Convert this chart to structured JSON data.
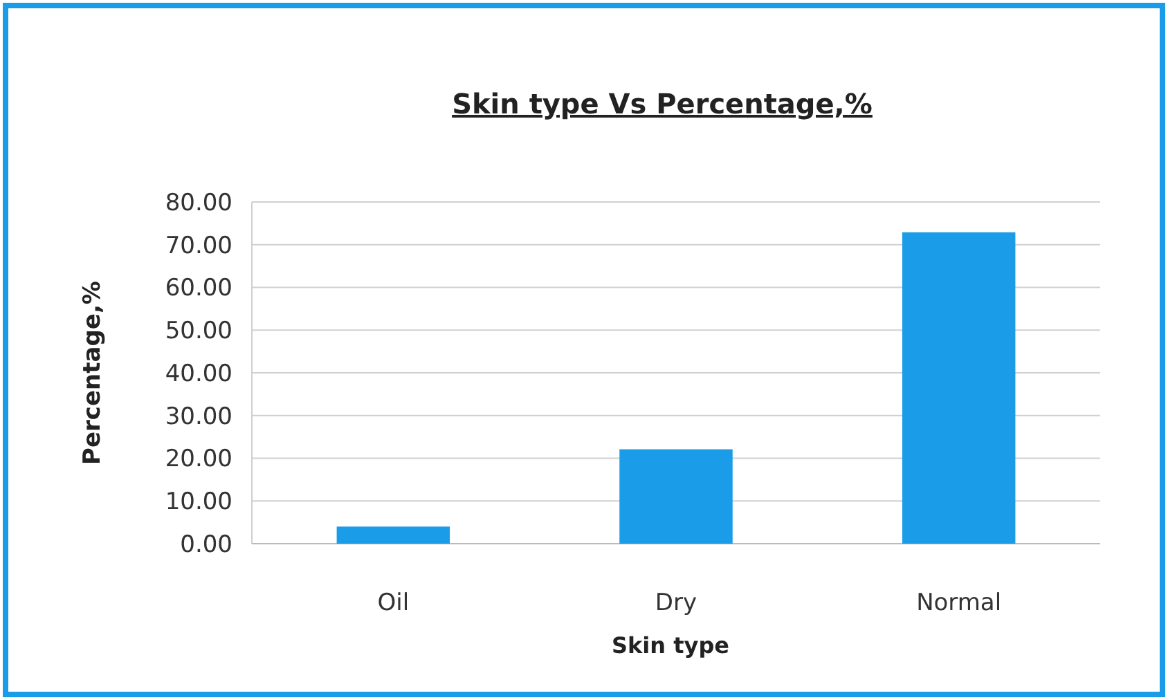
{
  "chart_data": {
    "type": "bar",
    "title": "Skin type Vs Percentage,%",
    "xlabel": "Skin type",
    "ylabel": "Percentage,%",
    "categories": [
      "Oil",
      "Dry",
      "Normal"
    ],
    "values": [
      4.0,
      22.1,
      72.9
    ],
    "color": "#1a9ce8",
    "ylim": [
      0,
      80
    ],
    "yticks": [
      {
        "value": 0,
        "label": "0.00"
      },
      {
        "value": 10,
        "label": "10.00"
      },
      {
        "value": 20,
        "label": "20.00"
      },
      {
        "value": 30,
        "label": "30.00"
      },
      {
        "value": 40,
        "label": "40.00"
      },
      {
        "value": 50,
        "label": "50.00"
      },
      {
        "value": 60,
        "label": "60.00"
      },
      {
        "value": 70,
        "label": "70.00"
      },
      {
        "value": 80,
        "label": "80.00"
      }
    ],
    "grid": "y"
  }
}
